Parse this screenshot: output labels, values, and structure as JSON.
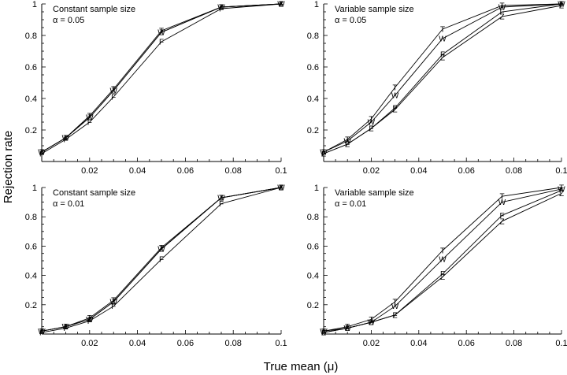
{
  "figure": {
    "ylabel": "Rejection rate",
    "xlabel": "True mean (μ)"
  },
  "chart_data": [
    {
      "type": "line",
      "title": "Constant sample size",
      "subtitle": "α = 0.05",
      "x": [
        0,
        0.01,
        0.02,
        0.03,
        0.05,
        0.075,
        0.1
      ],
      "xlim": [
        0,
        0.1
      ],
      "ylim": [
        0,
        1
      ],
      "x_ticks": [
        "0.02",
        "0.04",
        "0.06",
        "0.08",
        "0.1"
      ],
      "y_ticks": [
        "0.2",
        "0.4",
        "0.6",
        "0.8",
        "1"
      ],
      "series": [
        {
          "name": "T",
          "values": [
            0.06,
            0.15,
            0.29,
            0.46,
            0.83,
            0.98,
            1.0
          ]
        },
        {
          "name": "Z",
          "values": [
            0.06,
            0.15,
            0.28,
            0.45,
            0.82,
            0.98,
            1.0
          ]
        },
        {
          "name": "W",
          "values": [
            0.06,
            0.15,
            0.28,
            0.45,
            0.82,
            0.98,
            1.0
          ]
        },
        {
          "name": "F",
          "values": [
            0.05,
            0.14,
            0.25,
            0.41,
            0.76,
            0.97,
            1.0
          ]
        }
      ]
    },
    {
      "type": "line",
      "title": "Variable sample size",
      "subtitle": "α = 0.05",
      "x": [
        0,
        0.01,
        0.02,
        0.03,
        0.05,
        0.075,
        0.1
      ],
      "xlim": [
        0,
        0.1
      ],
      "ylim": [
        0,
        1
      ],
      "x_ticks": [
        "0.02",
        "0.04",
        "0.06",
        "0.08",
        "0.1"
      ],
      "y_ticks": [
        "0.2",
        "0.4",
        "0.6",
        "0.8",
        "1"
      ],
      "series": [
        {
          "name": "T",
          "values": [
            0.06,
            0.14,
            0.27,
            0.47,
            0.84,
            0.99,
            1.0
          ]
        },
        {
          "name": "W",
          "values": [
            0.06,
            0.13,
            0.25,
            0.42,
            0.78,
            0.98,
            1.0
          ]
        },
        {
          "name": "F",
          "values": [
            0.05,
            0.11,
            0.21,
            0.34,
            0.68,
            0.95,
            1.0
          ]
        },
        {
          "name": "Z",
          "values": [
            0.05,
            0.11,
            0.21,
            0.33,
            0.66,
            0.92,
            0.99
          ]
        }
      ]
    },
    {
      "type": "line",
      "title": "Constant sample size",
      "subtitle": "α = 0.01",
      "x": [
        0,
        0.01,
        0.02,
        0.03,
        0.05,
        0.075,
        0.1
      ],
      "xlim": [
        0,
        0.1
      ],
      "ylim": [
        0,
        1
      ],
      "x_ticks": [
        "0.02",
        "0.04",
        "0.06",
        "0.08",
        "0.1"
      ],
      "y_ticks": [
        "0.2",
        "0.4",
        "0.6",
        "0.8",
        "1"
      ],
      "series": [
        {
          "name": "T",
          "values": [
            0.02,
            0.05,
            0.11,
            0.23,
            0.59,
            0.93,
            1.0
          ]
        },
        {
          "name": "Z",
          "values": [
            0.02,
            0.05,
            0.1,
            0.22,
            0.58,
            0.93,
            1.0
          ]
        },
        {
          "name": "W",
          "values": [
            0.02,
            0.05,
            0.1,
            0.22,
            0.58,
            0.93,
            1.0
          ]
        },
        {
          "name": "F",
          "values": [
            0.01,
            0.04,
            0.09,
            0.19,
            0.51,
            0.89,
            1.0
          ]
        }
      ]
    },
    {
      "type": "line",
      "title": "Variable sample size",
      "subtitle": "α = 0.01",
      "x": [
        0,
        0.01,
        0.02,
        0.03,
        0.05,
        0.075,
        0.1
      ],
      "xlim": [
        0,
        0.1
      ],
      "ylim": [
        0,
        1
      ],
      "x_ticks": [
        "0.02",
        "0.04",
        "0.06",
        "0.08",
        "0.1"
      ],
      "y_ticks": [
        "0.2",
        "0.4",
        "0.6",
        "0.8",
        "1"
      ],
      "series": [
        {
          "name": "T",
          "values": [
            0.02,
            0.05,
            0.1,
            0.22,
            0.57,
            0.94,
            1.0
          ]
        },
        {
          "name": "W",
          "values": [
            0.02,
            0.04,
            0.08,
            0.19,
            0.51,
            0.9,
            0.99
          ]
        },
        {
          "name": "F",
          "values": [
            0.01,
            0.04,
            0.08,
            0.13,
            0.41,
            0.81,
            0.98
          ]
        },
        {
          "name": "Z",
          "values": [
            0.01,
            0.04,
            0.08,
            0.13,
            0.39,
            0.77,
            0.96
          ]
        }
      ]
    }
  ]
}
